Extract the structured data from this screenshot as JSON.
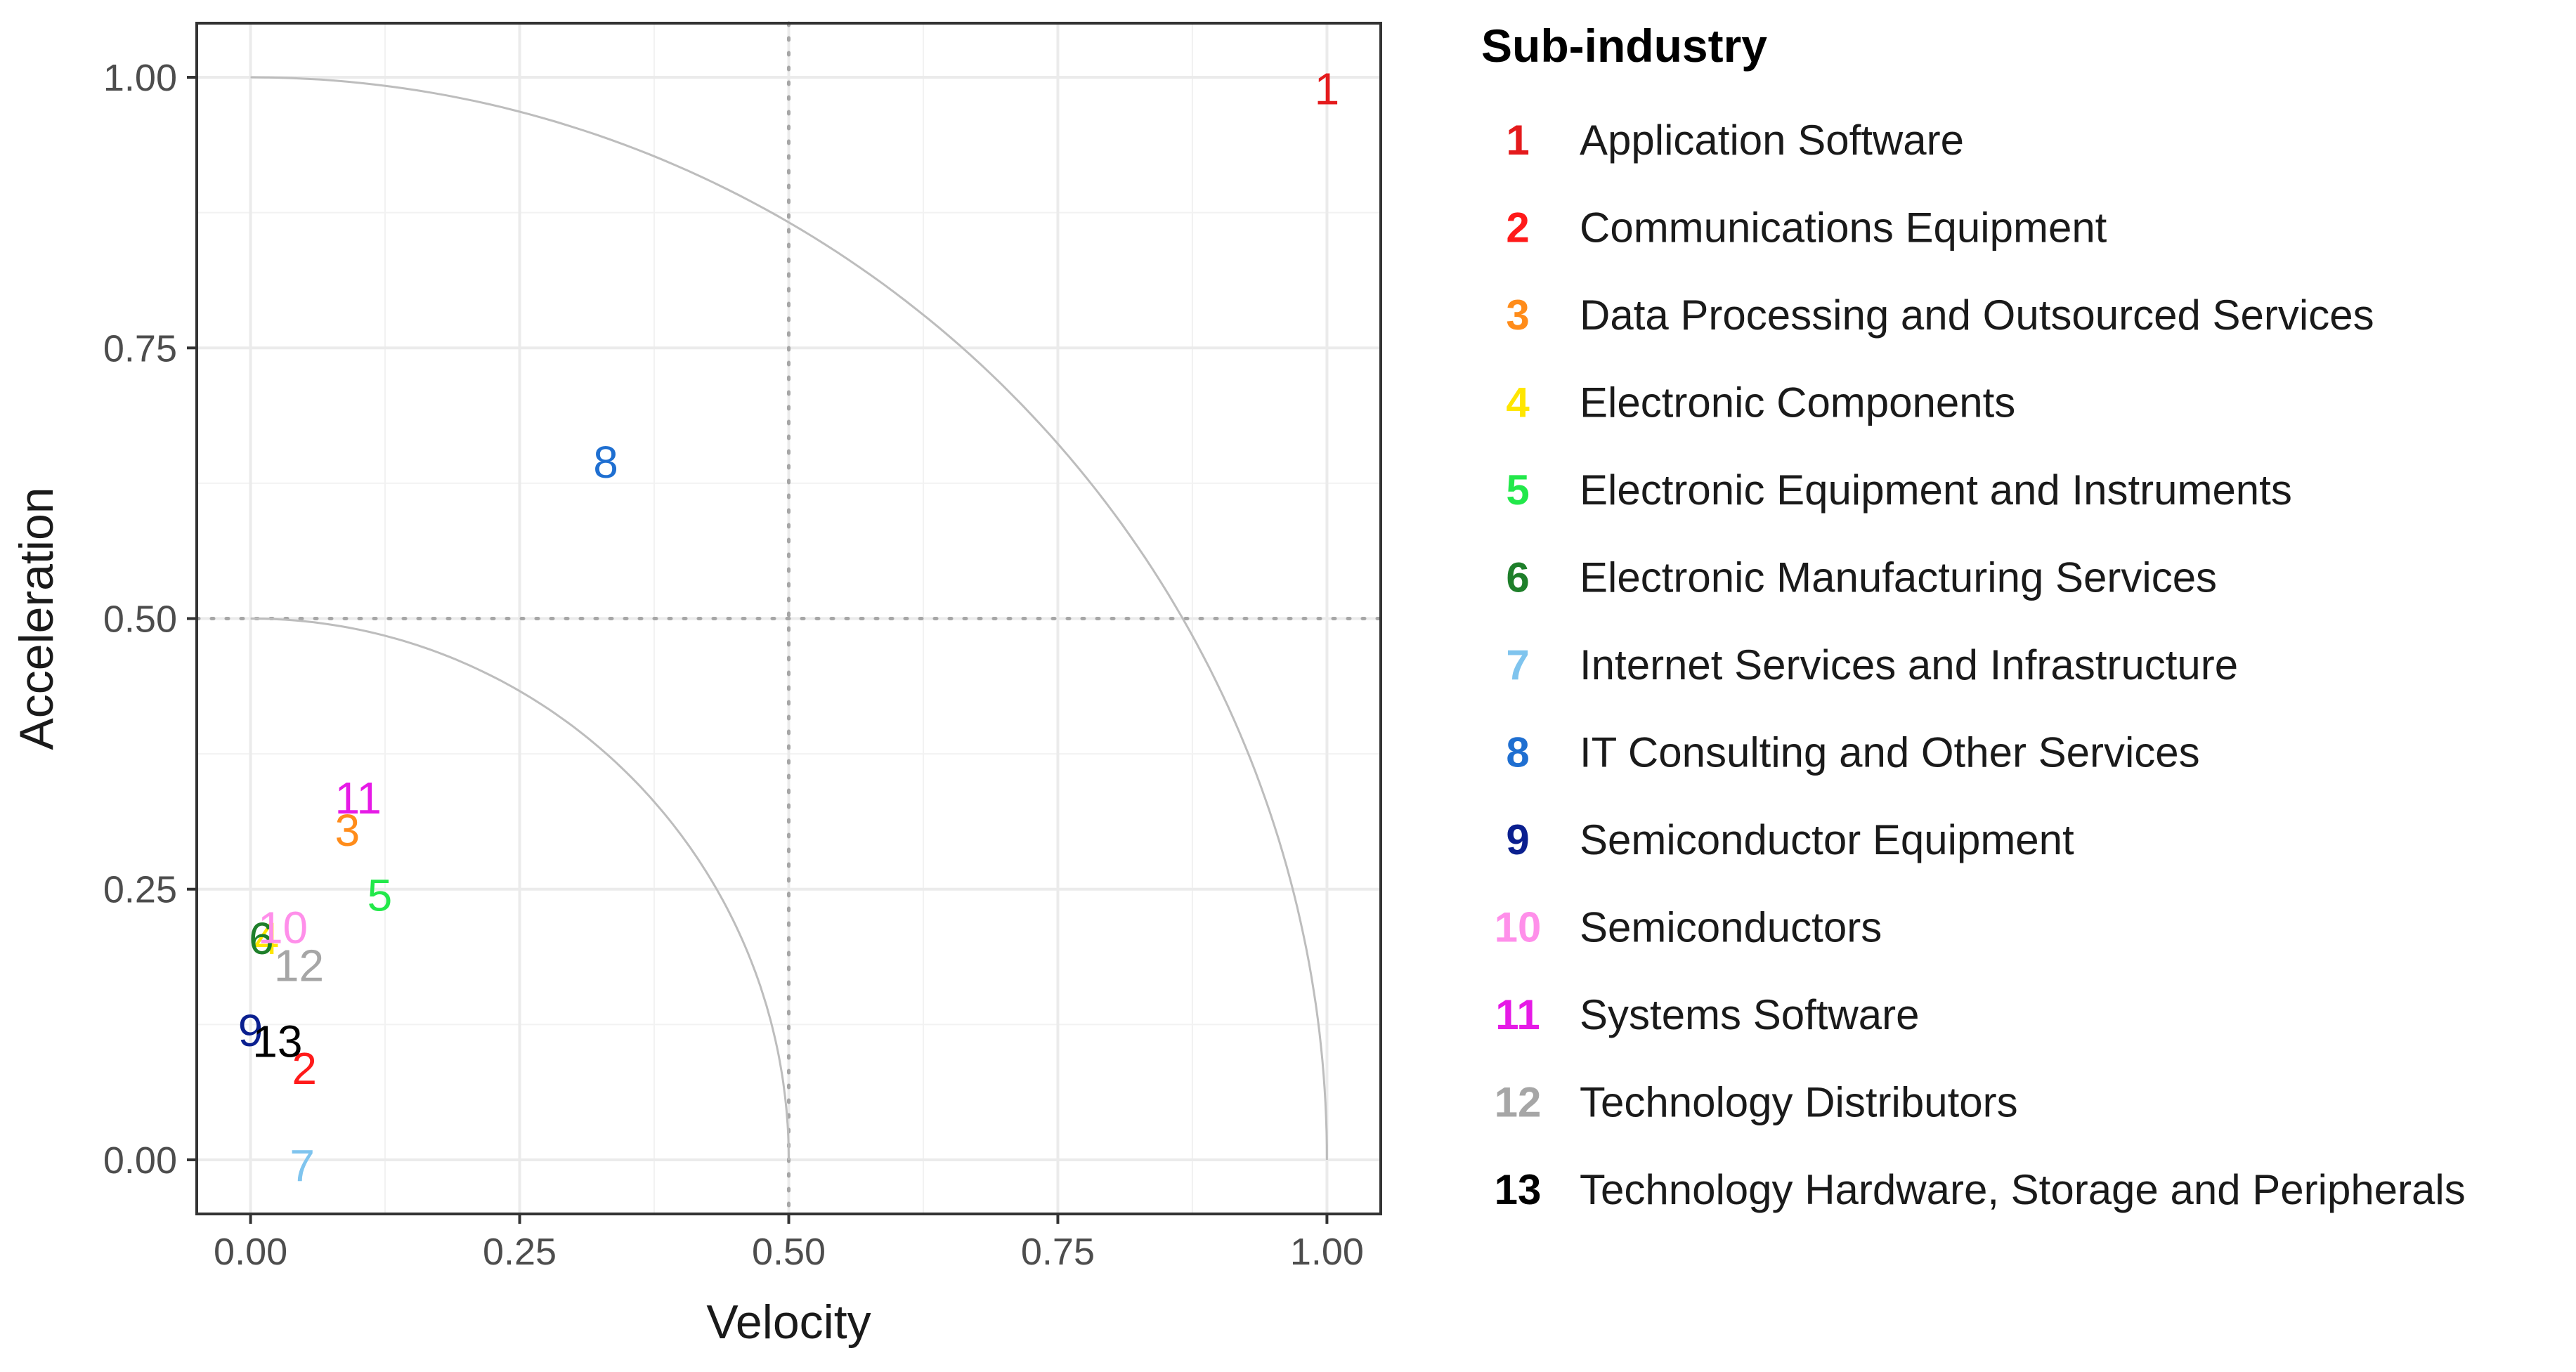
{
  "chart_data": {
    "type": "scatter",
    "xlabel": "Velocity",
    "ylabel": "Acceleration",
    "xlim": [
      -0.05,
      1.05
    ],
    "ylim": [
      -0.05,
      1.05
    ],
    "x_ticks": [
      0.0,
      0.25,
      0.5,
      0.75,
      1.0
    ],
    "y_ticks": [
      0.0,
      0.25,
      0.5,
      0.75,
      1.0
    ],
    "x_tick_labels": [
      "0.00",
      "0.25",
      "0.50",
      "0.75",
      "1.00"
    ],
    "y_tick_labels": [
      "0.00",
      "0.25",
      "0.50",
      "0.75",
      "1.00"
    ],
    "grid": true,
    "reference_lines": {
      "vertical": 0.5,
      "horizontal": 0.5,
      "style": "dotted"
    },
    "reference_arcs": [
      0.5,
      1.0
    ],
    "legend": {
      "title": "Sub-industry",
      "position": "right",
      "entries": [
        {
          "key": "1",
          "label": "Application Software",
          "color": "#E41A1C"
        },
        {
          "key": "2",
          "label": "Communications Equipment",
          "color": "#FF1A1A"
        },
        {
          "key": "3",
          "label": "Data Processing and Outsourced Services",
          "color": "#FF8C1A"
        },
        {
          "key": "4",
          "label": "Electronic Components",
          "color": "#FFE600"
        },
        {
          "key": "5",
          "label": "Electronic Equipment and Instruments",
          "color": "#22E84A"
        },
        {
          "key": "6",
          "label": "Electronic Manufacturing Services",
          "color": "#1E7F2A"
        },
        {
          "key": "7",
          "label": "Internet Services and Infrastructure",
          "color": "#7FC4EE"
        },
        {
          "key": "8",
          "label": "IT Consulting and Other Services",
          "color": "#1F6FD1"
        },
        {
          "key": "9",
          "label": "Semiconductor Equipment",
          "color": "#0A1F8F"
        },
        {
          "key": "10",
          "label": "Semiconductors",
          "color": "#FF8FEA"
        },
        {
          "key": "11",
          "label": "Systems Software",
          "color": "#E61AE6"
        },
        {
          "key": "12",
          "label": "Technology Distributors",
          "color": "#A6A6A6"
        },
        {
          "key": "13",
          "label": "Technology Hardware, Storage and Peripherals",
          "color": "#000000"
        }
      ]
    },
    "points": [
      {
        "label": "1",
        "x": 1.0,
        "y": 0.99,
        "color": "#E41A1C"
      },
      {
        "label": "2",
        "x": 0.05,
        "y": 0.085,
        "color": "#FF1A1A"
      },
      {
        "label": "3",
        "x": 0.09,
        "y": 0.305,
        "color": "#FF8C1A"
      },
      {
        "label": "4",
        "x": 0.015,
        "y": 0.205,
        "color": "#FFE600"
      },
      {
        "label": "5",
        "x": 0.12,
        "y": 0.245,
        "color": "#22E84A"
      },
      {
        "label": "6",
        "x": 0.01,
        "y": 0.205,
        "color": "#1E7F2A"
      },
      {
        "label": "7",
        "x": 0.048,
        "y": -0.005,
        "color": "#7FC4EE"
      },
      {
        "label": "8",
        "x": 0.33,
        "y": 0.645,
        "color": "#1F6FD1"
      },
      {
        "label": "9",
        "x": 0.0,
        "y": 0.12,
        "color": "#0A1F8F"
      },
      {
        "label": "10",
        "x": 0.03,
        "y": 0.215,
        "color": "#FF8FEA"
      },
      {
        "label": "11",
        "x": 0.1,
        "y": 0.335,
        "color": "#E61AE6"
      },
      {
        "label": "12",
        "x": 0.045,
        "y": 0.18,
        "color": "#A6A6A6"
      },
      {
        "label": "13",
        "x": 0.025,
        "y": 0.11,
        "color": "#000000"
      }
    ]
  }
}
